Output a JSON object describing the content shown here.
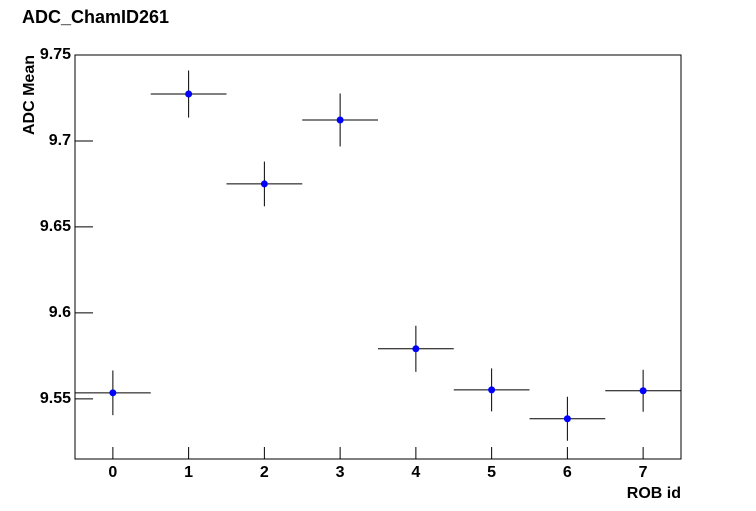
{
  "chart_data": {
    "type": "scatter",
    "title": "ADC_ChamID261",
    "x_label": "ROB id",
    "y_label": "ADC Mean",
    "x": [
      0,
      1,
      2,
      3,
      4,
      5,
      6,
      7
    ],
    "values": [
      9.5535,
      9.7273,
      9.675,
      9.7122,
      9.5791,
      9.5552,
      9.5384,
      9.5547
    ],
    "errors": [
      0.013,
      0.0137,
      0.013,
      0.0154,
      0.0134,
      0.0125,
      0.0128,
      0.0122
    ],
    "xerr": [
      0.5,
      0.5,
      0.5,
      0.5,
      0.5,
      0.5,
      0.5,
      0.5
    ],
    "color": "#0000ff",
    "xlim": [
      -0.5,
      7.5
    ],
    "xticks": [
      0,
      1,
      2,
      3,
      4,
      5,
      6,
      7
    ],
    "ylim": [
      9.515,
      9.75
    ],
    "yticks": [
      9.55,
      9.6,
      9.65,
      9.7,
      9.75
    ]
  }
}
